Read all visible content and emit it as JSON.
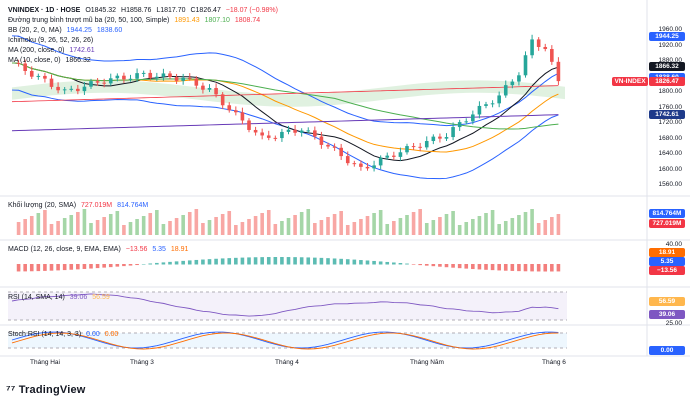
{
  "header": {
    "symbol": "VNINDEX · 1D · HOSE",
    "ohlc": [
      "O1845.32",
      "H1858.76",
      "L1817.70",
      "C1826.47",
      "−18.07 (−0.98%)"
    ],
    "ma_ribbon": {
      "label": "Đường trung bình trượt mũ ba (20, 50, 100, Simple)",
      "values": [
        "1891.43",
        "1807.10",
        "1808.74"
      ]
    },
    "bb": {
      "label": "BB (20, 2, 0, MA)",
      "values": [
        "1944.25",
        "1838.60"
      ]
    },
    "ichimoku": {
      "label": "Ichimoku (9, 26, 52, 26, 26)"
    },
    "ma200": {
      "label": "MA (200, close, 0)",
      "value": "1742.61"
    },
    "ma10": {
      "label": "MA (10, close, 0)",
      "value": "1866.32"
    }
  },
  "price_axis": [
    "1960.00",
    "1920.00",
    "1880.00",
    "1840.00",
    "1800.00",
    "1760.00",
    "1720.00",
    "1680.00",
    "1640.00",
    "1600.00",
    "1560.00"
  ],
  "price_tags": [
    {
      "text": "1944.25",
      "color": "#2962ff",
      "price": 1944.25
    },
    {
      "text": "1866.32",
      "color": "#131722",
      "price": 1866.32
    },
    {
      "text": "1838.60",
      "color": "#2962ff",
      "price": 1838.6
    },
    {
      "text": "1826.47",
      "color": "#f23645",
      "price": 1826.47
    },
    {
      "text": "1742.61",
      "color": "#1e3a8a",
      "price": 1742.61
    }
  ],
  "symbol_tag": "VN-INDEX",
  "volume": {
    "label": "Khối lượng (20, SMA)",
    "values": [
      "727.019M",
      "814.764M"
    ],
    "tag_ma": "814.764M",
    "tag_vol": "727.019M"
  },
  "macd": {
    "label": "MACD (12, 26, close, 9, EMA, EMA)",
    "values": [
      "−13.56",
      "5.35",
      "18.91"
    ],
    "axis": "40.00",
    "tags": [
      "18.91",
      "5.35",
      "−13.56"
    ]
  },
  "rsi": {
    "label": "RSI (14, SMA, 14)",
    "values": [
      "39.06",
      "56.59"
    ],
    "tags": [
      "56.59",
      "39.06"
    ],
    "axis": "25.00"
  },
  "stoch": {
    "label": "Stoch RSI (14, 14, 3, 3)",
    "values": [
      "0.00",
      "0.00"
    ],
    "tag": "0.00"
  },
  "x_axis": [
    {
      "text": "Tháng Hai",
      "pos": 45
    },
    {
      "text": "Tháng 3",
      "pos": 145
    },
    {
      "text": "Tháng 4",
      "pos": 290
    },
    {
      "text": "Tháng Năm",
      "pos": 425
    },
    {
      "text": "Tháng 6",
      "pos": 557
    }
  ],
  "footer": "TradingView",
  "colors": {
    "up": "#26a69a",
    "down": "#ef5350",
    "bb": "#2962ff",
    "ma10": "#131722",
    "ma20": "#ff9800",
    "ma50": "#4caf50",
    "ma200": "#673ab7",
    "cloud_green": "#a5d6a7",
    "cloud_red": "#f8bbd0"
  }
}
